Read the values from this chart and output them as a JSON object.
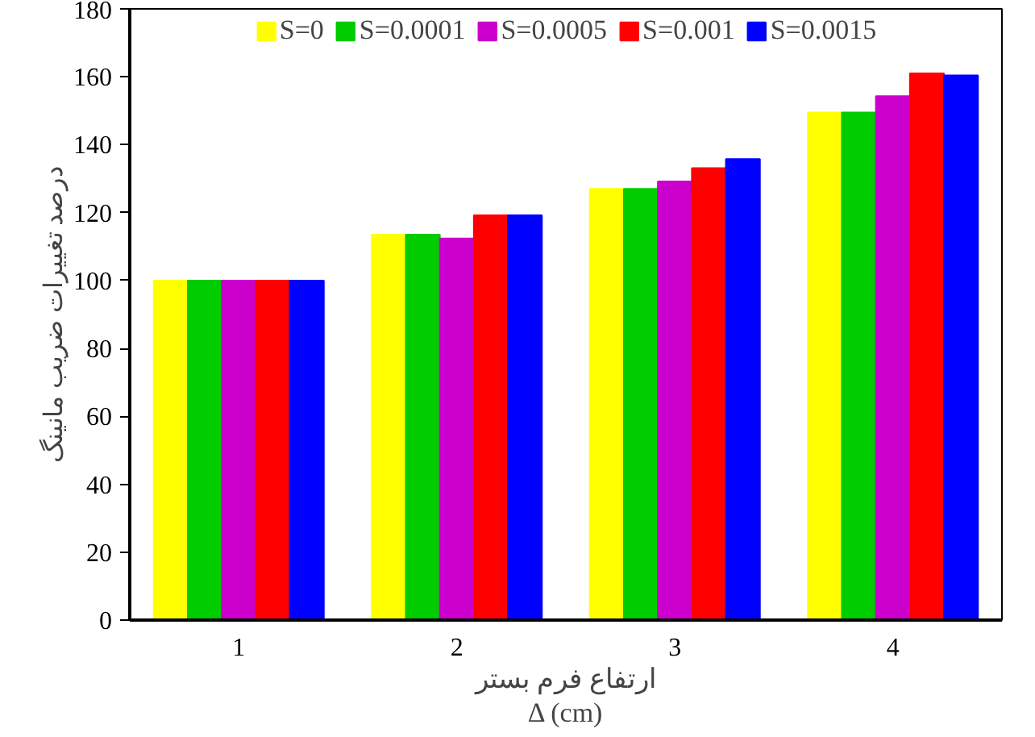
{
  "chart_data": {
    "type": "bar",
    "categories": [
      "1",
      "2",
      "3",
      "4"
    ],
    "xlabel": "ارتفاع فرم بستر\nΔ (cm)",
    "ylabel": "درصد تغییرات ضریب مانینگ",
    "ylim": [
      0,
      180
    ],
    "yticks": [
      0,
      20,
      40,
      60,
      80,
      100,
      120,
      140,
      160,
      180
    ],
    "grid": false,
    "legend": "top",
    "series": [
      {
        "name": "S=0",
        "color": "#ffff00",
        "values": [
          100,
          113.5,
          127,
          149.5
        ]
      },
      {
        "name": "S=0.0001",
        "color": "#00cc00",
        "values": [
          100,
          113.5,
          127,
          149.5
        ]
      },
      {
        "name": "S=0.0005",
        "color": "#cc00cc",
        "values": [
          100,
          112.4,
          129.2,
          154.3
        ]
      },
      {
        "name": "S=0.001",
        "color": "#ff0000",
        "values": [
          100,
          119.2,
          133.1,
          161
        ]
      },
      {
        "name": "S=0.0015",
        "color": "#0000ff",
        "values": [
          100,
          119.2,
          135.8,
          160.4
        ]
      }
    ]
  }
}
